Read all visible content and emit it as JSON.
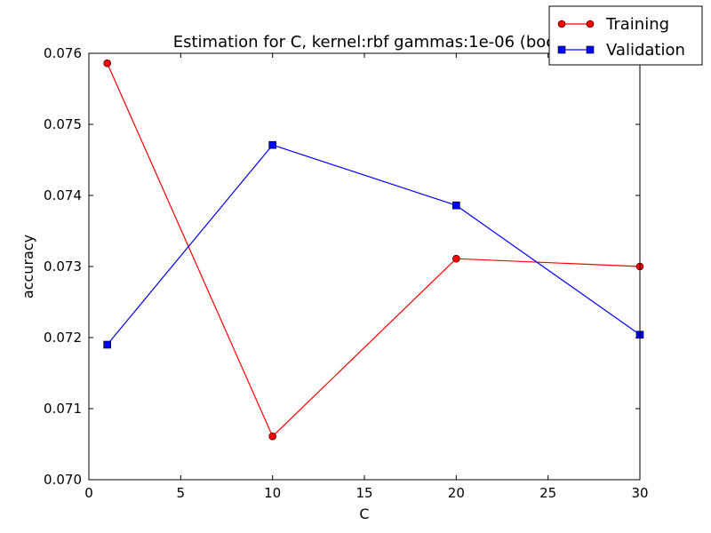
{
  "chart_data": {
    "type": "line",
    "title": "Estimation for C, kernel:rbf gammas:1e-06 (boo",
    "xlabel": "C",
    "ylabel": "accuracy",
    "xlim": [
      0,
      30
    ],
    "ylim": [
      0.07,
      0.076
    ],
    "x_ticks": [
      "0",
      "5",
      "10",
      "15",
      "20",
      "25",
      "30"
    ],
    "y_ticks": [
      "0.070",
      "0.071",
      "0.072",
      "0.073",
      "0.074",
      "0.075",
      "0.076"
    ],
    "grid": false,
    "legend_position": "top-right",
    "series": [
      {
        "name": "Training",
        "color": "#ff0000",
        "marker": "circle",
        "x": [
          1,
          10,
          20,
          30
        ],
        "y": [
          0.07586,
          0.07061,
          0.07311,
          0.073
        ]
      },
      {
        "name": "Validation",
        "color": "#0000ff",
        "marker": "square",
        "x": [
          1,
          10,
          20,
          30
        ],
        "y": [
          0.0719,
          0.07471,
          0.07386,
          0.07204
        ]
      }
    ]
  }
}
